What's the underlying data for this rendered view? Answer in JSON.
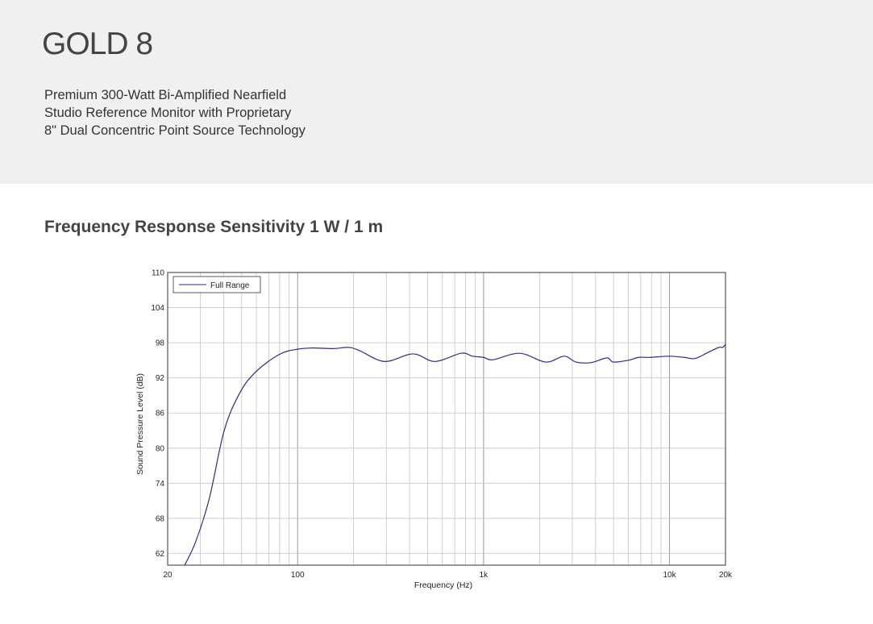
{
  "header": {
    "title": "GOLD 8",
    "subtitle_lines": [
      "Premium 300-Watt Bi-Amplified Nearfield",
      "Studio Reference Monitor with Proprietary",
      "8\" Dual Concentric Point Source Technology"
    ]
  },
  "section_title": "Frequency Response Sensitivity 1 W / 1 m",
  "chart_data": {
    "type": "line",
    "title": "Frequency Response Sensitivity 1 W / 1 m",
    "xlabel": "Frequency (Hz)",
    "ylabel": "Sound Pressure Level (dB)",
    "xscale": "log",
    "xlim": [
      20,
      20000
    ],
    "ylim": [
      60,
      110
    ],
    "xticks": [
      {
        "value": 20,
        "label": "20"
      },
      {
        "value": 100,
        "label": "100"
      },
      {
        "value": 1000,
        "label": "1k"
      },
      {
        "value": 10000,
        "label": "10k"
      },
      {
        "value": 20000,
        "label": "20k"
      }
    ],
    "yticks": [
      110,
      104,
      98,
      92,
      86,
      80,
      74,
      68,
      62
    ],
    "grid": true,
    "legend_position": "top-left",
    "line_color": "#2b2f7a",
    "series": [
      {
        "name": "Full Range",
        "x": [
          24.7,
          28.3,
          33.5,
          40.2,
          48.6,
          59,
          79.6,
          100,
          120,
          155,
          189,
          217,
          294,
          417,
          546,
          758,
          872,
          1000,
          1127,
          1567,
          2160,
          2710,
          3140,
          3780,
          4600,
          5000,
          6000,
          6830,
          7880,
          9920,
          12000,
          13700,
          16000,
          18400,
          19300,
          20000
        ],
        "y": [
          60,
          64,
          71.4,
          82.9,
          89.3,
          92.9,
          96,
          96.9,
          97.1,
          97,
          97.2,
          96.6,
          94.8,
          96.1,
          94.8,
          96.2,
          95.7,
          95.5,
          95.1,
          96.2,
          94.7,
          95.7,
          94.7,
          94.6,
          95.4,
          94.7,
          95,
          95.5,
          95.5,
          95.7,
          95.5,
          95.3,
          96.3,
          97.2,
          97.2,
          97.7
        ]
      }
    ]
  }
}
